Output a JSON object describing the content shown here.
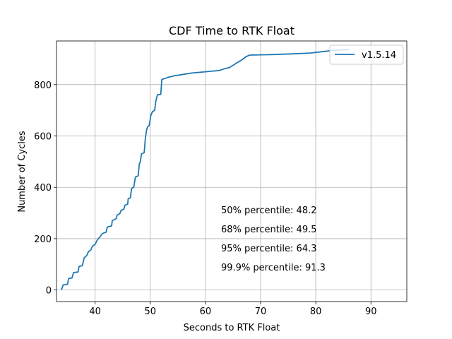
{
  "chart_data": {
    "type": "line",
    "title": "CDF Time to RTK Float",
    "xlabel": "Seconds to RTK Float",
    "ylabel": "Number of Cycles",
    "xlim": [
      33.0,
      96.5
    ],
    "ylim": [
      -45,
      970
    ],
    "xticks": [
      40,
      50,
      60,
      70,
      80,
      90
    ],
    "yticks": [
      0,
      200,
      400,
      600,
      800
    ],
    "grid": true,
    "legend_position": "top-right",
    "series": [
      {
        "name": "v1.5.14",
        "color": "#1f77b4",
        "points": [
          [
            33.9,
            0
          ],
          [
            34.2,
            20
          ],
          [
            35.0,
            22
          ],
          [
            35.2,
            45
          ],
          [
            35.8,
            47
          ],
          [
            36.1,
            68
          ],
          [
            36.9,
            70
          ],
          [
            37.1,
            92
          ],
          [
            37.7,
            95
          ],
          [
            38.0,
            125
          ],
          [
            38.5,
            135
          ],
          [
            38.8,
            150
          ],
          [
            39.2,
            155
          ],
          [
            39.5,
            170
          ],
          [
            40.0,
            178
          ],
          [
            40.4,
            195
          ],
          [
            41.0,
            210
          ],
          [
            41.3,
            220
          ],
          [
            42.0,
            225
          ],
          [
            42.2,
            245
          ],
          [
            43.0,
            250
          ],
          [
            43.1,
            270
          ],
          [
            43.8,
            278
          ],
          [
            44.0,
            292
          ],
          [
            44.5,
            298
          ],
          [
            44.7,
            310
          ],
          [
            45.2,
            315
          ],
          [
            45.4,
            330
          ],
          [
            45.9,
            335
          ],
          [
            46.0,
            355
          ],
          [
            46.4,
            360
          ],
          [
            46.6,
            395
          ],
          [
            47.0,
            400
          ],
          [
            47.3,
            440
          ],
          [
            47.8,
            445
          ],
          [
            48.0,
            490
          ],
          [
            48.2,
            500
          ],
          [
            48.4,
            530
          ],
          [
            48.9,
            535
          ],
          [
            49.1,
            590
          ],
          [
            49.3,
            620
          ],
          [
            49.5,
            635
          ],
          [
            49.8,
            640
          ],
          [
            50.1,
            680
          ],
          [
            50.4,
            695
          ],
          [
            50.8,
            700
          ],
          [
            51.0,
            735
          ],
          [
            51.3,
            760
          ],
          [
            51.9,
            762
          ],
          [
            52.1,
            820
          ],
          [
            52.8,
            825
          ],
          [
            53.5,
            830
          ],
          [
            54.5,
            835
          ],
          [
            56.0,
            840
          ],
          [
            57.5,
            845
          ],
          [
            59.0,
            848
          ],
          [
            61.0,
            852
          ],
          [
            62.5,
            855
          ],
          [
            63.5,
            862
          ],
          [
            64.3,
            866
          ],
          [
            65.0,
            875
          ],
          [
            65.7,
            885
          ],
          [
            66.5,
            895
          ],
          [
            67.3,
            908
          ],
          [
            68.0,
            915
          ],
          [
            72.0,
            917
          ],
          [
            76.0,
            920
          ],
          [
            79.0,
            923
          ],
          [
            81.0,
            928
          ],
          [
            83.0,
            933
          ],
          [
            84.5,
            935
          ],
          [
            86.0,
            937
          ]
        ]
      }
    ],
    "annotations": [
      "50% percentile: 48.2",
      "68% percentile: 49.5",
      "95% percentile: 64.3",
      "99.9% percentile: 91.3"
    ]
  }
}
